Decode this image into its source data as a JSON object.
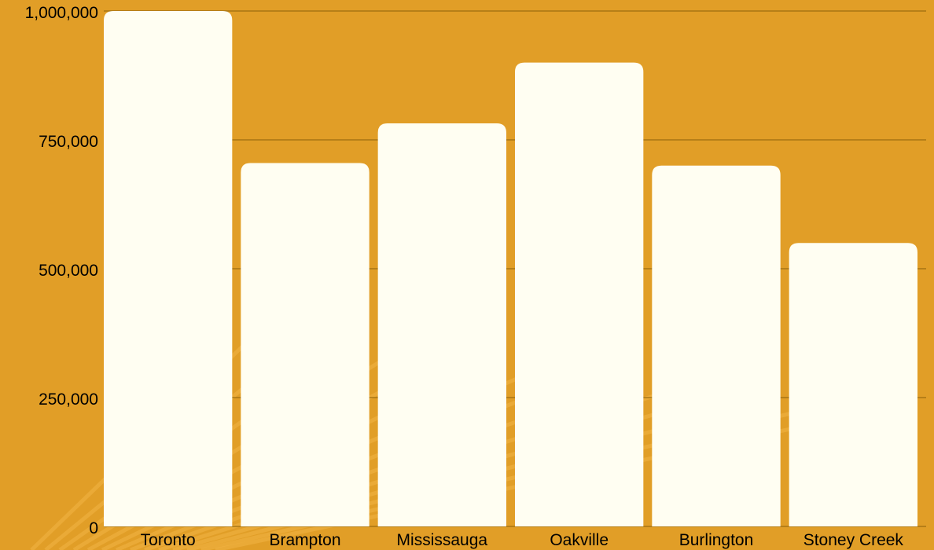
{
  "colors": {
    "background": "#E19E27",
    "bar": "#FFFEF2",
    "grid": "#9C6D10",
    "text": "#000000",
    "texture": "#F2B545"
  },
  "chart_data": {
    "type": "bar",
    "title": "",
    "xlabel": "",
    "ylabel": "",
    "categories": [
      "Toronto",
      "Brampton",
      "Mississauga",
      "Oakville",
      "Burlington",
      "Stoney Creek"
    ],
    "values": [
      1000000,
      705000,
      782000,
      900000,
      700000,
      550000
    ],
    "ylim": [
      0,
      1000000
    ],
    "yticks": [
      0,
      250000,
      500000,
      750000,
      1000000
    ],
    "ytick_labels": [
      "0",
      "250,000",
      "500,000",
      "750,000",
      "1,000,000"
    ],
    "grid": true,
    "legend": "none"
  }
}
